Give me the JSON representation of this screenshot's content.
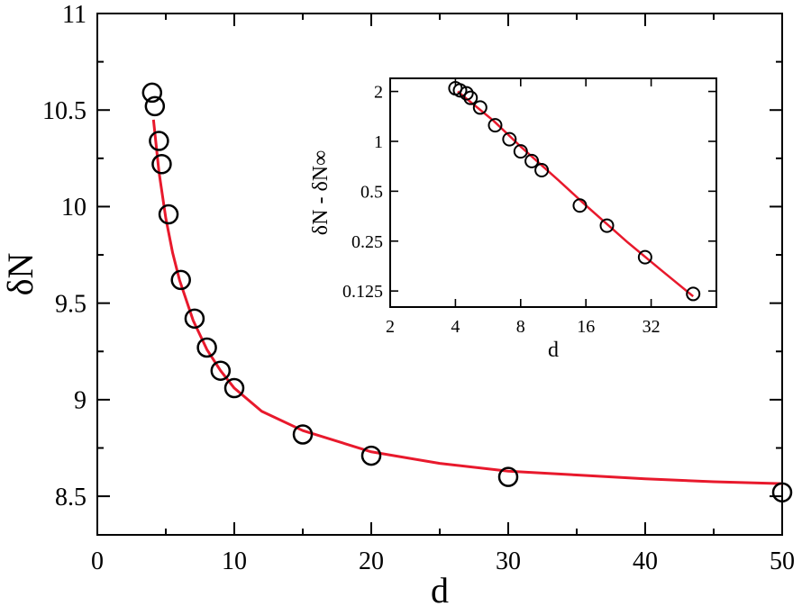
{
  "chart_data": [
    {
      "type": "scatter",
      "title": "",
      "xlabel": "d",
      "ylabel": "δN",
      "xlim": [
        0,
        50
      ],
      "ylim": [
        8.3,
        11
      ],
      "x_ticks": [
        0,
        10,
        20,
        30,
        40,
        50
      ],
      "x_tick_labels": [
        "0",
        "10",
        "20",
        "30",
        "40",
        "50"
      ],
      "y_ticks": [
        8.5,
        9,
        9.5,
        10,
        10.5,
        11
      ],
      "y_tick_labels": [
        "8.5",
        "9",
        "9.5",
        "10",
        "10.5",
        "11"
      ],
      "grid": false,
      "marker_color": "#000000",
      "fit_color": "#e8192c",
      "points": {
        "x": [
          4,
          4.2,
          4.5,
          4.7,
          5.2,
          6.1,
          7.1,
          8,
          9,
          10,
          15,
          20,
          30,
          50
        ],
        "y": [
          10.59,
          10.52,
          10.34,
          10.22,
          9.96,
          9.62,
          9.42,
          9.27,
          9.15,
          9.06,
          8.82,
          8.71,
          8.6,
          8.52
        ]
      },
      "fit": {
        "x": [
          4.1,
          4.5,
          5,
          5.5,
          6,
          7,
          8,
          9,
          10,
          12,
          15,
          20,
          25,
          30,
          35,
          40,
          45,
          50
        ],
        "y": [
          10.45,
          10.18,
          9.94,
          9.76,
          9.62,
          9.41,
          9.26,
          9.15,
          9.06,
          8.94,
          8.84,
          8.73,
          8.67,
          8.63,
          8.61,
          8.59,
          8.575,
          8.565
        ]
      }
    },
    {
      "type": "scatter",
      "title": "",
      "xlabel": "d",
      "ylabel": "δN - δN∞",
      "x_scale": "log2",
      "y_scale": "log2",
      "xlim": [
        2,
        64
      ],
      "ylim": [
        0.1,
        2.4
      ],
      "x_ticks": [
        2,
        4,
        8,
        16,
        32
      ],
      "x_tick_labels": [
        "2",
        "4",
        "8",
        "16",
        "32"
      ],
      "y_ticks": [
        0.125,
        0.25,
        0.5,
        1,
        2
      ],
      "y_tick_labels": [
        "0.125",
        "0.25",
        "0.5",
        "1",
        "2"
      ],
      "grid": false,
      "marker_color": "#000000",
      "fit_color": "#e8192c",
      "points": {
        "x": [
          4,
          4.2,
          4.5,
          4.7,
          5.2,
          6.1,
          7.1,
          8,
          9,
          10,
          15,
          20,
          30,
          50
        ],
        "y": [
          2.09,
          2.03,
          1.95,
          1.83,
          1.6,
          1.25,
          1.03,
          0.87,
          0.76,
          0.67,
          0.41,
          0.31,
          0.2,
          0.12
        ]
      },
      "fit": {
        "x": [
          4.1,
          6,
          8,
          12,
          16,
          25,
          35,
          50
        ],
        "y": [
          2.0,
          1.33,
          0.93,
          0.58,
          0.41,
          0.245,
          0.17,
          0.116
        ]
      }
    }
  ]
}
